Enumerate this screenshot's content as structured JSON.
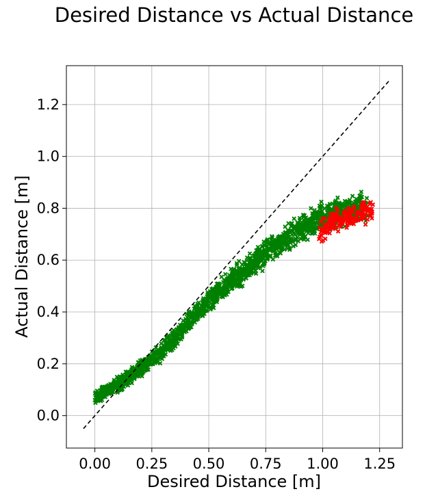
{
  "chart_data": {
    "type": "scatter",
    "title": "Desired Distance vs Actual Distance",
    "xlabel": "Desired Distance [m]",
    "ylabel": "Actual Distance [m]",
    "xlim": [
      -0.125,
      1.35
    ],
    "ylim": [
      -0.125,
      1.35
    ],
    "xticks": [
      "0.00",
      "0.25",
      "0.50",
      "0.75",
      "1.00",
      "1.25"
    ],
    "yticks": [
      "0.0",
      "0.2",
      "0.4",
      "0.6",
      "0.8",
      "1.0",
      "1.2"
    ],
    "grid": true,
    "reference_line": {
      "style": "dashed",
      "color": "#000000",
      "x": [
        -0.05,
        1.29
      ],
      "y": [
        -0.05,
        1.29
      ]
    },
    "series": [
      {
        "color": "#008000",
        "marker": "x",
        "trend": [
          [
            0.0,
            0.07
          ],
          [
            0.1,
            0.12
          ],
          [
            0.2,
            0.18
          ],
          [
            0.3,
            0.25
          ],
          [
            0.4,
            0.35
          ],
          [
            0.5,
            0.44
          ],
          [
            0.6,
            0.52
          ],
          [
            0.7,
            0.59
          ],
          [
            0.8,
            0.66
          ],
          [
            0.9,
            0.72
          ],
          [
            1.0,
            0.77
          ],
          [
            1.1,
            0.79
          ],
          [
            1.2,
            0.8
          ]
        ]
      },
      {
        "color": "#ff0000",
        "marker": "x",
        "trend": [
          [
            0.98,
            0.7
          ],
          [
            1.05,
            0.75
          ],
          [
            1.1,
            0.77
          ],
          [
            1.15,
            0.78
          ],
          [
            1.22,
            0.79
          ]
        ]
      }
    ]
  }
}
